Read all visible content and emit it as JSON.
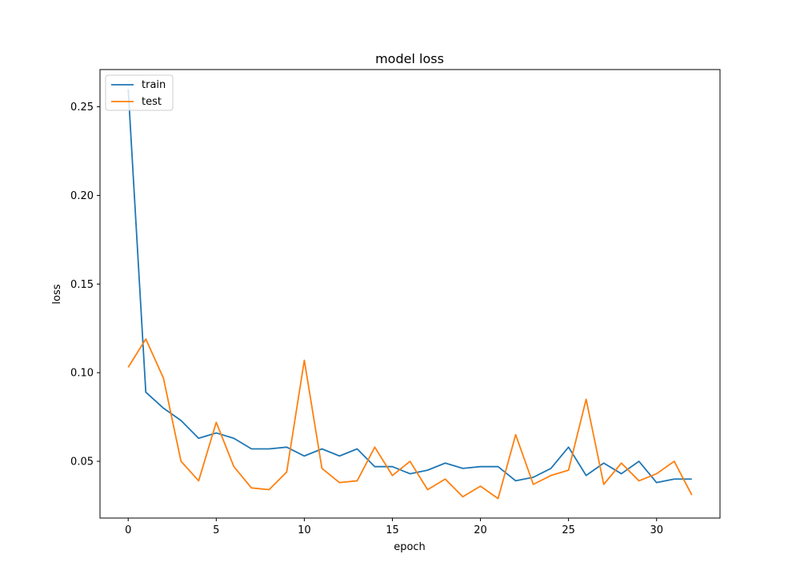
{
  "chart_data": {
    "type": "line",
    "title": "model loss",
    "xlabel": "epoch",
    "ylabel": "loss",
    "xlim": [
      -1.6,
      33.6
    ],
    "ylim": [
      0.018,
      0.271
    ],
    "xticks": [
      0,
      5,
      10,
      15,
      20,
      25,
      30
    ],
    "yticks": [
      0.05,
      0.1,
      0.15,
      0.2,
      0.25
    ],
    "xtick_labels": [
      "0",
      "5",
      "10",
      "15",
      "20",
      "25",
      "30"
    ],
    "ytick_labels": [
      "0.05",
      "0.10",
      "0.15",
      "0.20",
      "0.25"
    ],
    "legend_position": "upper-left",
    "grid": false,
    "x": [
      0,
      1,
      2,
      3,
      4,
      5,
      6,
      7,
      8,
      9,
      10,
      11,
      12,
      13,
      14,
      15,
      16,
      17,
      18,
      19,
      20,
      21,
      22,
      23,
      24,
      25,
      26,
      27,
      28,
      29,
      30,
      31,
      32
    ],
    "series": [
      {
        "name": "train",
        "color": "#1f77b4",
        "values": [
          0.26,
          0.089,
          0.08,
          0.073,
          0.063,
          0.066,
          0.063,
          0.057,
          0.057,
          0.058,
          0.053,
          0.057,
          0.053,
          0.057,
          0.047,
          0.047,
          0.043,
          0.045,
          0.049,
          0.046,
          0.047,
          0.047,
          0.039,
          0.041,
          0.046,
          0.058,
          0.042,
          0.049,
          0.043,
          0.05,
          0.038,
          0.04,
          0.04
        ]
      },
      {
        "name": "test",
        "color": "#ff7f0e",
        "values": [
          0.103,
          0.119,
          0.097,
          0.05,
          0.039,
          0.072,
          0.047,
          0.035,
          0.034,
          0.044,
          0.107,
          0.046,
          0.038,
          0.039,
          0.058,
          0.042,
          0.05,
          0.034,
          0.04,
          0.03,
          0.036,
          0.029,
          0.065,
          0.037,
          0.042,
          0.045,
          0.085,
          0.037,
          0.049,
          0.039,
          0.043,
          0.05,
          0.031
        ]
      }
    ]
  }
}
